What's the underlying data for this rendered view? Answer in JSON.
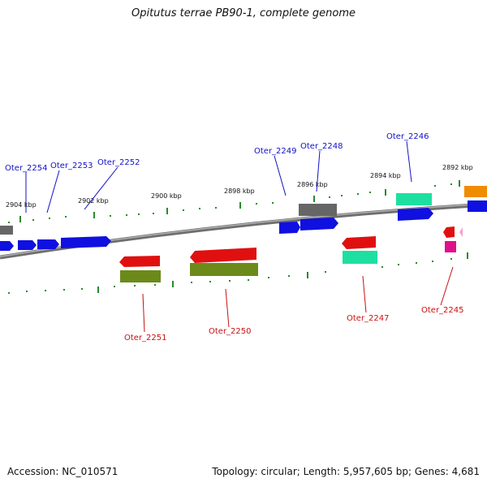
{
  "title": "Opitutus terrae PB90-1, complete genome",
  "footer": {
    "accession": "Accession: NC_010571",
    "topology": "Topology: circular; Length: 5,957,605 bp; Genes: 4,681"
  },
  "ticks": [
    "2904 kbp",
    "2902 kbp",
    "2900 kbp",
    "2898 kbp",
    "2896 kbp",
    "2894 kbp",
    "2892 kbp"
  ],
  "genes_top": [
    "Oter_2254",
    "Oter_2253",
    "Oter_2252",
    "Oter_2249",
    "Oter_2248",
    "Oter_2246"
  ],
  "genes_bottom": [
    "Oter_2251",
    "Oter_2250",
    "Oter_2247",
    "Oter_2245"
  ],
  "colors": {
    "blue": "#1010e0",
    "red": "#e01010",
    "olive": "#6b8a1a",
    "teal": "#1de0a0",
    "gray": "#666666",
    "orange": "#f08c00",
    "magenta": "#e0108a",
    "tick": "#2a8a2a",
    "backbone": "#808080"
  }
}
